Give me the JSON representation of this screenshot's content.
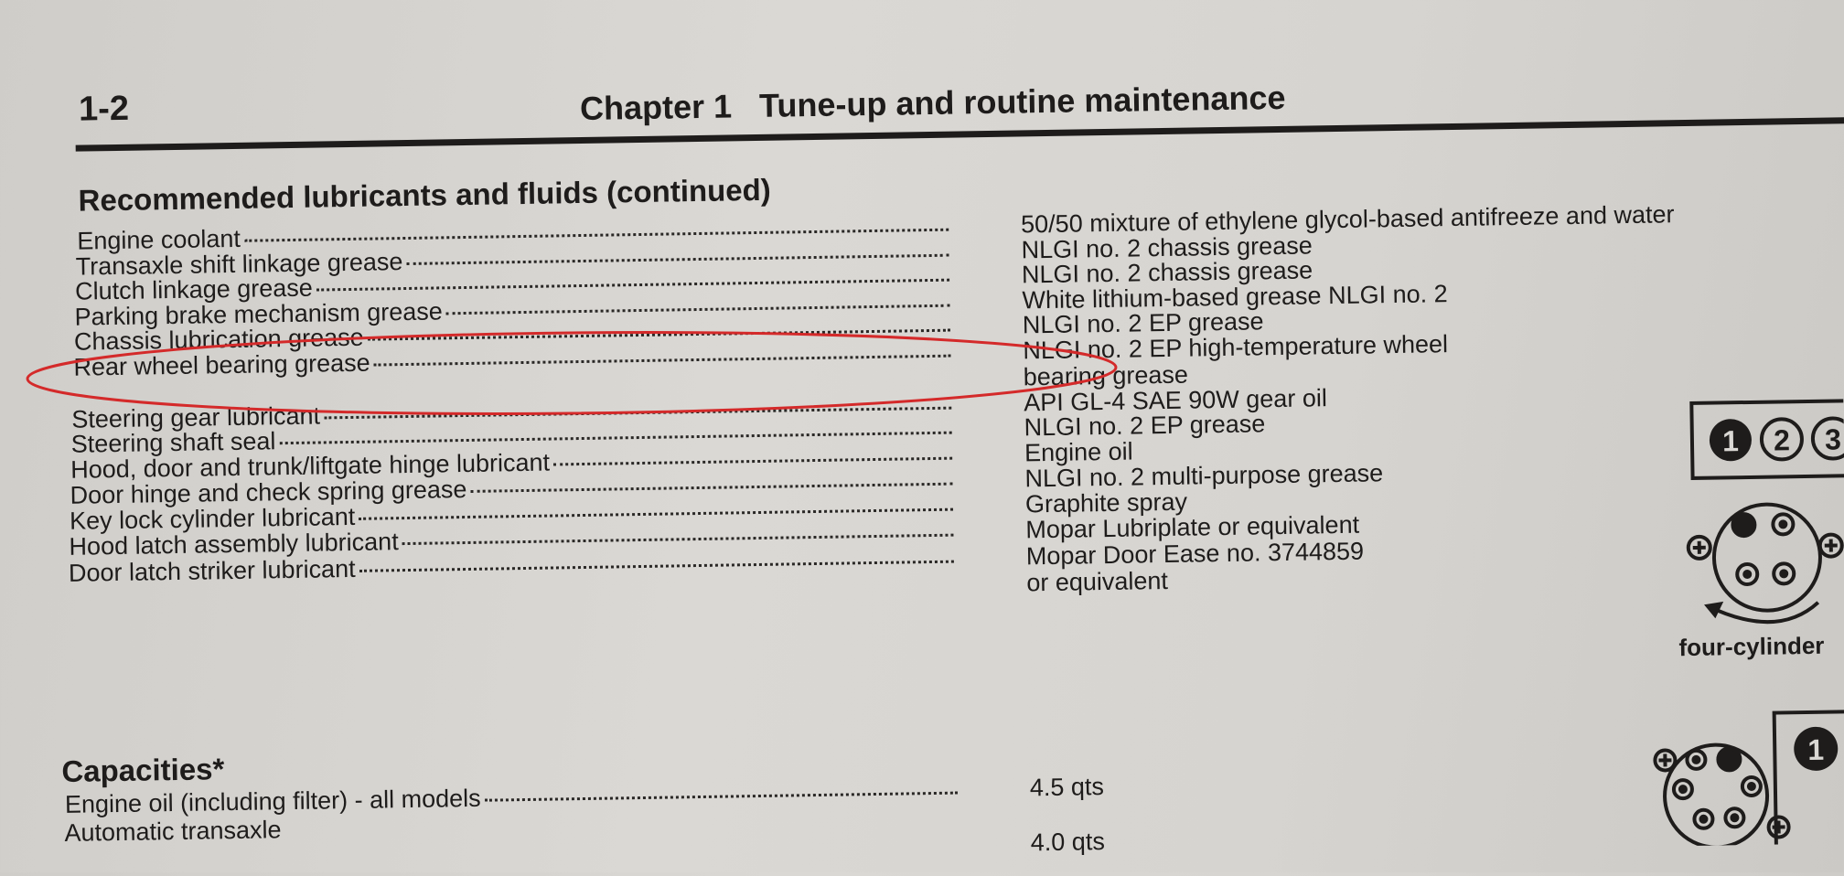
{
  "header": {
    "page_number": "1-2",
    "chapter_title": "Chapter 1   Tune-up and routine maintenance"
  },
  "lubricants": {
    "heading": "Recommended lubricants and fluids (continued)",
    "rows": [
      {
        "label": "Engine coolant",
        "value": "50/50 mixture of ethylene glycol-based antifreeze and water"
      },
      {
        "label": "Transaxle shift linkage grease",
        "value": "NLGI no. 2 chassis grease"
      },
      {
        "label": "Clutch linkage grease",
        "value": "NLGI no. 2 chassis grease"
      },
      {
        "label": "Parking brake mechanism grease",
        "value": "White lithium-based grease NLGI no. 2"
      },
      {
        "label": "Chassis lubrication grease",
        "value": "NLGI no. 2 EP grease"
      },
      {
        "label": "Rear wheel bearing grease",
        "value": "NLGI no. 2 EP high-temperature wheel",
        "value2": "bearing grease"
      },
      {
        "label": "Steering gear lubricant",
        "value": "API GL-4 SAE 90W gear oil"
      },
      {
        "label": "Steering shaft seal",
        "value": "NLGI no. 2 EP grease"
      },
      {
        "label": "Hood, door and trunk/liftgate hinge lubricant",
        "value": "Engine oil"
      },
      {
        "label": "Door hinge and check spring grease",
        "value": "NLGI no. 2 multi-purpose grease"
      },
      {
        "label": "Key lock cylinder lubricant",
        "value": "Graphite spray"
      },
      {
        "label": "Hood latch assembly lubricant",
        "value": "Mopar Lubriplate or equivalent"
      },
      {
        "label": "Door latch striker lubricant",
        "value": "Mopar Door Ease no. 3744859",
        "value2": "or equivalent"
      }
    ]
  },
  "capacities": {
    "heading": "Capacities*",
    "rows": [
      {
        "label": "Engine oil (including filter) - all models",
        "value": "4.5 qts"
      },
      {
        "label": "Automatic transaxle",
        "value": ""
      },
      {
        "label": "",
        "value": "4.0 qts"
      }
    ]
  },
  "diagram": {
    "firing_order_1": [
      "1",
      "2",
      "3"
    ],
    "caption": "four-cylinder",
    "firing_order_2": [
      "1"
    ]
  },
  "annotation_color": "#d42a2a"
}
